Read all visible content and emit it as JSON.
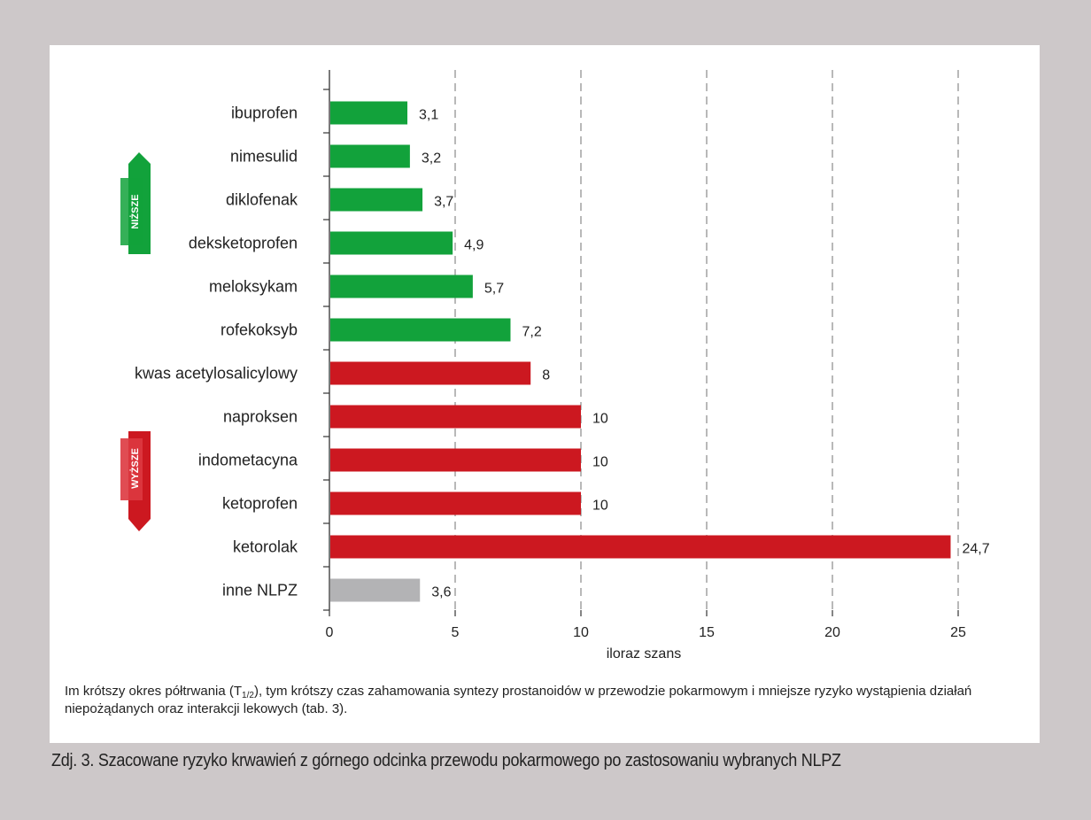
{
  "chart_data": {
    "type": "bar",
    "orientation": "horizontal",
    "categories": [
      "ibuprofen",
      "nimesulid",
      "diklofenak",
      "deksketoprofen",
      "meloksykam",
      "rofekoksyb",
      "kwas acetylosalicylowy",
      "naproksen",
      "indometacyna",
      "ketoprofen",
      "ketorolak",
      "inne NLPZ"
    ],
    "values": [
      3.1,
      3.2,
      3.7,
      4.9,
      5.7,
      7.2,
      8,
      10,
      10,
      10,
      24.7,
      3.6
    ],
    "value_labels": [
      "3,1",
      "3,2",
      "3,7",
      "4,9",
      "5,7",
      "7,2",
      "8",
      "10",
      "10",
      "10",
      "24,7",
      "3,6"
    ],
    "bar_colors": [
      "#12a23b",
      "#12a23b",
      "#12a23b",
      "#12a23b",
      "#12a23b",
      "#12a23b",
      "#cc1820",
      "#cc1820",
      "#cc1820",
      "#cc1820",
      "#cc1820",
      "#b3b3b5"
    ],
    "xlabel": "iloraz szans",
    "xlim": [
      0,
      25
    ],
    "xticks": [
      0,
      5,
      10,
      15,
      20,
      25
    ],
    "grid": "vertical dashed",
    "legend": "none"
  },
  "indicators": {
    "lower": {
      "text": "NIŻSZE",
      "color": "#12a23b",
      "icon": "arrow-up-icon"
    },
    "higher": {
      "text": "WYŻSZE",
      "color": "#cc1820",
      "icon": "arrow-down-icon"
    }
  },
  "note": {
    "text_before": "Im krótszy okres półtrwania (T",
    "subscript": "1/2",
    "text_after": "), tym krótszy czas zahamowania syntezy prostanoidów w przewodzie pokarmowym i mniejsze ryzyko wystąpienia działań niepożądanych oraz interakcji lekowych (tab. 3)."
  },
  "caption": "Zdj. 3. Szacowane ryzyko krwawień z górnego odcinka przewodu pokarmowego po zastosowaniu wybranych NLPZ"
}
